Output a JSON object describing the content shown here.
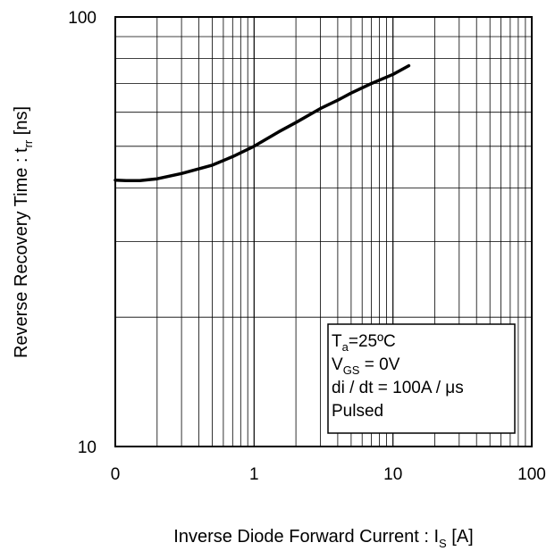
{
  "chart_data": {
    "type": "line",
    "title": "",
    "xlabel": {
      "main": "Inverse Diode  Forward Current : I",
      "sub": "S",
      "unit": " [A]"
    },
    "ylabel": {
      "main": "Reverse Recovery Time : t",
      "sub": "rr",
      "unit": " [ns]"
    },
    "x_scale": "log",
    "y_scale": "log",
    "xlim": [
      0.1,
      100
    ],
    "ylim": [
      10,
      100
    ],
    "x_tick_labels": [
      "0",
      "1",
      "10",
      "100"
    ],
    "y_tick_labels": [
      "10",
      "100"
    ],
    "grid": true,
    "series": [
      {
        "x": [
          0.1,
          0.12,
          0.15,
          0.2,
          0.3,
          0.5,
          0.7,
          1.0,
          1.5,
          2.0,
          3.0,
          4.0,
          5.0,
          7.0,
          10.0,
          13.0
        ],
        "y": [
          41.7,
          41.6,
          41.6,
          42.0,
          43.2,
          45.2,
          47.3,
          50.0,
          54.0,
          56.8,
          61.2,
          64.0,
          66.5,
          70.0,
          73.5,
          77.0
        ]
      }
    ],
    "annotation": {
      "lines": [
        [
          {
            "t": "T"
          },
          {
            "t": "a",
            "sub": true
          },
          {
            "t": "=25ºC"
          }
        ],
        [
          {
            "t": "V"
          },
          {
            "t": "GS",
            "sub": true
          },
          {
            "t": " = 0V"
          }
        ],
        [
          {
            "t": "di / dt = 100A / μs"
          }
        ],
        [
          {
            "t": "Pulsed"
          }
        ]
      ]
    }
  }
}
